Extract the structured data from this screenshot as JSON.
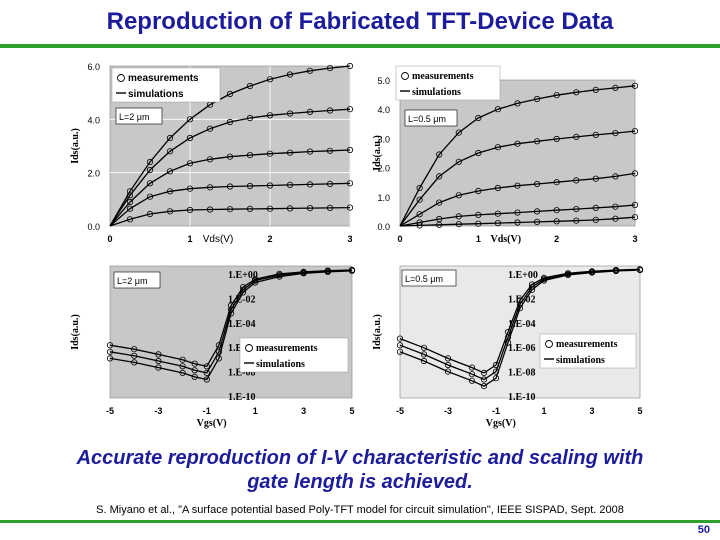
{
  "slide": {
    "title": "Reproduction of Fabricated TFT-Device Data",
    "caption_line1": "Accurate reproduction of I-V characteristic and scaling with",
    "caption_line2": "gate length is achieved.",
    "citation": "S. Miyano et al., \"A surface potential based Poly-TFT model for circuit simulation\", IEEE SISPAD, Sept. 2008",
    "page_number": "50"
  },
  "chart_data": [
    {
      "type": "line",
      "panel": "output-L2",
      "annotation": "L=2 μm",
      "xlabel": "Vds(V)",
      "ylabel": "Ids(a.u.)",
      "xlim": [
        0,
        3
      ],
      "ylim": [
        0,
        6
      ],
      "xticks": [
        "0",
        "1",
        "2",
        "3"
      ],
      "yticks": [
        "0.0",
        "2.0",
        "4.0",
        "6.0"
      ],
      "legend": [
        "measurements",
        "simulations"
      ],
      "legend_position": "top-left",
      "grid": true,
      "x": [
        0,
        0.25,
        0.5,
        0.75,
        1.0,
        1.25,
        1.5,
        1.75,
        2.0,
        2.25,
        2.5,
        2.75,
        3.0
      ],
      "series": [
        {
          "values": [
            0,
            0.25,
            0.45,
            0.55,
            0.6,
            0.62,
            0.63,
            0.64,
            0.65,
            0.66,
            0.67,
            0.68,
            0.69
          ]
        },
        {
          "values": [
            0,
            0.65,
            1.1,
            1.3,
            1.4,
            1.45,
            1.48,
            1.5,
            1.52,
            1.54,
            1.56,
            1.58,
            1.6
          ]
        },
        {
          "values": [
            0,
            0.9,
            1.6,
            2.05,
            2.35,
            2.5,
            2.6,
            2.66,
            2.71,
            2.75,
            2.79,
            2.82,
            2.85
          ]
        },
        {
          "values": [
            0,
            1.15,
            2.1,
            2.8,
            3.3,
            3.65,
            3.9,
            4.05,
            4.15,
            4.22,
            4.28,
            4.33,
            4.38
          ]
        },
        {
          "values": [
            0,
            1.3,
            2.4,
            3.3,
            4.0,
            4.55,
            4.95,
            5.25,
            5.5,
            5.68,
            5.82,
            5.92,
            6.0
          ]
        }
      ]
    },
    {
      "type": "line",
      "panel": "output-L05",
      "annotation": "L=0.5 μm",
      "xlabel": "Vds(V)",
      "ylabel": "Ids(a.u.)",
      "xlim": [
        0,
        3
      ],
      "ylim": [
        0,
        5
      ],
      "xticks": [
        "0",
        "1",
        "2",
        "3"
      ],
      "yticks": [
        "0.0",
        "1.0",
        "2.0",
        "3.0",
        "4.0",
        "5.0"
      ],
      "legend": [
        "measurements",
        "simulations"
      ],
      "legend_position": "top-left",
      "grid": false,
      "x": [
        0,
        0.25,
        0.5,
        0.75,
        1.0,
        1.25,
        1.5,
        1.75,
        2.0,
        2.25,
        2.5,
        2.75,
        3.0
      ],
      "series": [
        {
          "values": [
            0,
            0.02,
            0.04,
            0.06,
            0.08,
            0.1,
            0.12,
            0.14,
            0.16,
            0.18,
            0.21,
            0.25,
            0.3
          ]
        },
        {
          "values": [
            0,
            0.12,
            0.24,
            0.33,
            0.38,
            0.42,
            0.46,
            0.5,
            0.54,
            0.58,
            0.62,
            0.66,
            0.72
          ]
        },
        {
          "values": [
            0,
            0.4,
            0.8,
            1.05,
            1.2,
            1.3,
            1.38,
            1.44,
            1.5,
            1.56,
            1.62,
            1.7,
            1.8
          ]
        },
        {
          "values": [
            0,
            0.9,
            1.7,
            2.2,
            2.5,
            2.7,
            2.82,
            2.9,
            2.98,
            3.05,
            3.12,
            3.18,
            3.25
          ]
        },
        {
          "values": [
            0,
            1.3,
            2.45,
            3.2,
            3.7,
            4.0,
            4.2,
            4.35,
            4.48,
            4.58,
            4.66,
            4.73,
            4.8
          ]
        }
      ]
    },
    {
      "type": "line",
      "panel": "transfer-L2",
      "annotation": "L=2 μm",
      "xlabel": "Vgs(V)",
      "ylabel": "Ids(a.u.)",
      "xlim": [
        -5,
        5
      ],
      "ylim": [
        -10,
        0
      ],
      "yscale": "log",
      "xticks": [
        "-5",
        "-3",
        "-1",
        "1",
        "3",
        "5"
      ],
      "yticks": [
        "1.E+00",
        "1.E-02",
        "1.E-04",
        "1.E-06",
        "1.E-08",
        "1.E-10"
      ],
      "legend": [
        "measurements",
        "simulations"
      ],
      "legend_position": "bottom-right",
      "grid": false,
      "x": [
        -5,
        -4,
        -3,
        -2,
        -1.5,
        -1,
        -0.5,
        0,
        0.5,
        1,
        2,
        3,
        4,
        5
      ],
      "series": [
        {
          "values": [
            -6.0,
            -6.3,
            -6.7,
            -7.1,
            -7.4,
            -7.6,
            -6.0,
            -3.0,
            -1.6,
            -1.0,
            -0.6,
            -0.45,
            -0.35,
            -0.3
          ]
        },
        {
          "values": [
            -6.5,
            -6.8,
            -7.2,
            -7.6,
            -7.9,
            -8.1,
            -6.5,
            -3.3,
            -1.8,
            -1.1,
            -0.7,
            -0.5,
            -0.4,
            -0.33
          ]
        },
        {
          "values": [
            -7.0,
            -7.3,
            -7.7,
            -8.1,
            -8.4,
            -8.6,
            -7.0,
            -3.6,
            -2.0,
            -1.25,
            -0.8,
            -0.55,
            -0.45,
            -0.36
          ]
        }
      ]
    },
    {
      "type": "line",
      "panel": "transfer-L05",
      "annotation": "L=0.5 μm",
      "xlabel": "Vgs(V)",
      "ylabel": "Ids(a.u.)",
      "xlim": [
        -5,
        5
      ],
      "ylim": [
        -10,
        0
      ],
      "yscale": "log",
      "xticks": [
        "-5",
        "-3",
        "-1",
        "1",
        "3",
        "5"
      ],
      "yticks": [
        "1.E+00",
        "1.E-02",
        "1.E-04",
        "1.E-06",
        "1.E-08",
        "1.E-10"
      ],
      "legend": [
        "measurements",
        "simulations"
      ],
      "legend_position": "bottom-right",
      "grid": false,
      "x": [
        -5,
        -4,
        -3,
        -2,
        -1.5,
        -1,
        -0.5,
        0,
        0.5,
        1,
        2,
        3,
        4,
        5
      ],
      "series": [
        {
          "values": [
            -5.5,
            -6.2,
            -7.0,
            -7.7,
            -8.1,
            -7.5,
            -5.0,
            -2.6,
            -1.4,
            -0.9,
            -0.55,
            -0.4,
            -0.3,
            -0.25
          ]
        },
        {
          "values": [
            -6.0,
            -6.7,
            -7.5,
            -8.2,
            -8.6,
            -8.0,
            -5.4,
            -2.9,
            -1.6,
            -1.0,
            -0.6,
            -0.45,
            -0.35,
            -0.28
          ]
        },
        {
          "values": [
            -6.5,
            -7.2,
            -8.0,
            -8.7,
            -9.1,
            -8.5,
            -5.8,
            -3.2,
            -1.8,
            -1.1,
            -0.68,
            -0.5,
            -0.38,
            -0.3
          ]
        }
      ]
    }
  ]
}
